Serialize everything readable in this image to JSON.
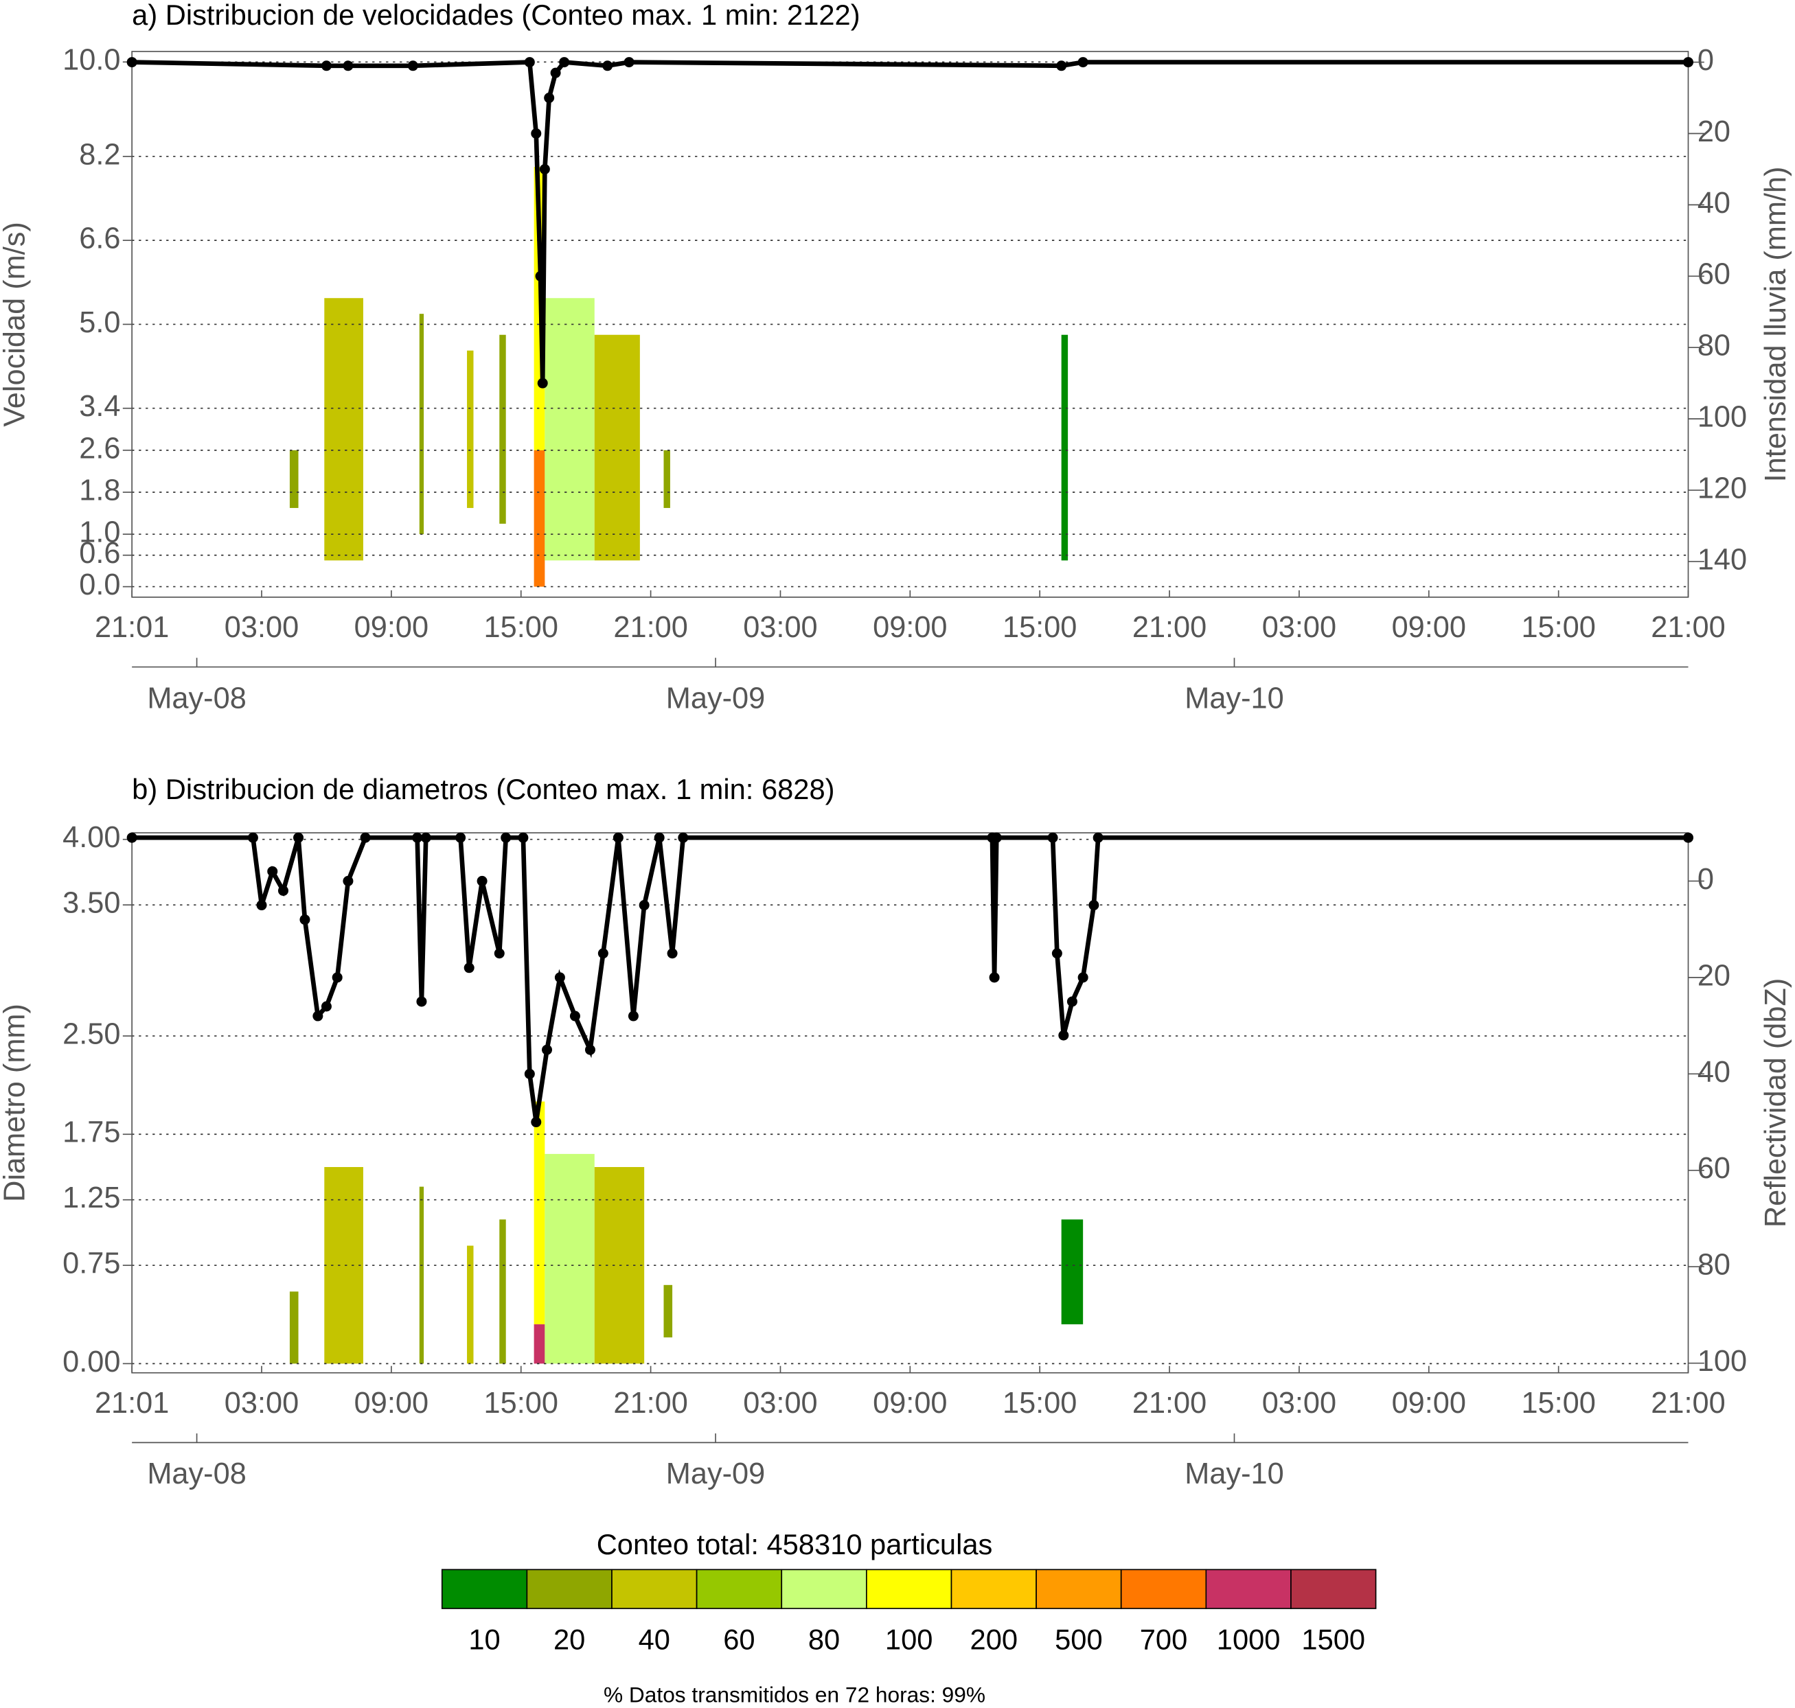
{
  "chart_data": [
    {
      "type": "heatmap",
      "title": "a) Distribucion de velocidades (Conteo max. 1 min: 2122)",
      "ylabel": "Velocidad (m/s)",
      "y2label": "Intensidad lluvia (mm/h)",
      "xlim": [
        0,
        72
      ],
      "xticks": [
        {
          "value": 0,
          "label": "21:01"
        },
        {
          "value": 6,
          "label": "03:00"
        },
        {
          "value": 12,
          "label": "09:00"
        },
        {
          "value": 18,
          "label": "15:00"
        },
        {
          "value": 24,
          "label": "21:00"
        },
        {
          "value": 30,
          "label": "03:00"
        },
        {
          "value": 36,
          "label": "09:00"
        },
        {
          "value": 42,
          "label": "15:00"
        },
        {
          "value": 48,
          "label": "21:00"
        },
        {
          "value": 54,
          "label": "03:00"
        },
        {
          "value": 60,
          "label": "09:00"
        },
        {
          "value": 66,
          "label": "15:00"
        },
        {
          "value": 72,
          "label": "21:00"
        }
      ],
      "date_ticks": [
        {
          "value": 3,
          "label": "May-08"
        },
        {
          "value": 27,
          "label": "May-09"
        },
        {
          "value": 51,
          "label": "May-10"
        }
      ],
      "ylim": [
        -0.2,
        10.2
      ],
      "yticks": [
        {
          "value": 0,
          "label": "0.0"
        },
        0.6,
        {
          "value": 1,
          "label": "1.0"
        },
        1.8,
        2.6,
        3.4,
        {
          "value": 5,
          "label": "5.0"
        },
        6.6,
        8.2,
        {
          "value": 10,
          "label": "10.0"
        }
      ],
      "y2lim": [
        150,
        -3
      ],
      "y2ticks": [
        0,
        20,
        40,
        60,
        80,
        100,
        120,
        140
      ],
      "grid": true,
      "patches": [
        {
          "x": [
            7.3,
            7.7
          ],
          "y": [
            1.5,
            2.6
          ],
          "count": 20
        },
        {
          "x": [
            8.9,
            10.7
          ],
          "y": [
            0.5,
            5.5
          ],
          "count": 40
        },
        {
          "x": [
            13.3,
            13.5
          ],
          "y": [
            1.0,
            5.2
          ],
          "count": 20
        },
        {
          "x": [
            15.5,
            15.8
          ],
          "y": [
            1.5,
            4.5
          ],
          "count": 40
        },
        {
          "x": [
            17.0,
            17.3
          ],
          "y": [
            1.2,
            4.8
          ],
          "count": 20
        },
        {
          "x": [
            18.6,
            19.1
          ],
          "y": [
            2.6,
            8.0
          ],
          "count": 100
        },
        {
          "x": [
            18.6,
            19.1
          ],
          "y": [
            0.0,
            2.6
          ],
          "count": 700
        },
        {
          "x": [
            19.1,
            21.4
          ],
          "y": [
            0.5,
            5.5
          ],
          "count": 80
        },
        {
          "x": [
            21.4,
            23.5
          ],
          "y": [
            0.5,
            4.8
          ],
          "count": 40
        },
        {
          "x": [
            24.6,
            24.9
          ],
          "y": [
            1.5,
            2.6
          ],
          "count": 20
        },
        {
          "x": [
            43.0,
            43.3
          ],
          "y": [
            0.5,
            4.8
          ],
          "count": 10
        }
      ],
      "line": {
        "axis": "y2",
        "color": "#000000",
        "x": [
          0,
          9,
          10,
          13,
          18.4,
          18.7,
          18.9,
          19.0,
          19.1,
          19.3,
          19.6,
          20,
          22,
          23,
          43,
          44,
          72
        ],
        "values": [
          0,
          1,
          1,
          1,
          0,
          20,
          60,
          90,
          30,
          10,
          3,
          0,
          1,
          0,
          1,
          0,
          0
        ]
      }
    },
    {
      "type": "heatmap",
      "title": "b) Distribucion de diametros (Conteo max. 1 min: 6828)",
      "ylabel": "Diametro (mm)",
      "y2label": "Reflectividad (dbZ)",
      "xlim": [
        0,
        72
      ],
      "xticks": [
        {
          "value": 0,
          "label": "21:01"
        },
        {
          "value": 6,
          "label": "03:00"
        },
        {
          "value": 12,
          "label": "09:00"
        },
        {
          "value": 18,
          "label": "15:00"
        },
        {
          "value": 24,
          "label": "21:00"
        },
        {
          "value": 30,
          "label": "03:00"
        },
        {
          "value": 36,
          "label": "09:00"
        },
        {
          "value": 42,
          "label": "15:00"
        },
        {
          "value": 48,
          "label": "21:00"
        },
        {
          "value": 54,
          "label": "03:00"
        },
        {
          "value": 60,
          "label": "09:00"
        },
        {
          "value": 66,
          "label": "15:00"
        },
        {
          "value": 72,
          "label": "21:00"
        }
      ],
      "date_ticks": [
        {
          "value": 3,
          "label": "May-08"
        },
        {
          "value": 27,
          "label": "May-09"
        },
        {
          "value": 51,
          "label": "May-10"
        }
      ],
      "ylim": [
        -0.07,
        4.05
      ],
      "yticks": [
        {
          "value": 0,
          "label": "0.00"
        },
        0.75,
        1.25,
        1.75,
        {
          "value": 2.5,
          "label": "2.50"
        },
        {
          "value": 3.5,
          "label": "3.50"
        },
        {
          "value": 4,
          "label": "4.00"
        }
      ],
      "y2lim": [
        102,
        -10
      ],
      "y2ticks": [
        0,
        20,
        40,
        60,
        80,
        100
      ],
      "grid": true,
      "patches": [
        {
          "x": [
            7.3,
            7.7
          ],
          "y": [
            0,
            0.55
          ],
          "count": 20
        },
        {
          "x": [
            8.9,
            10.7
          ],
          "y": [
            0,
            1.5
          ],
          "count": 40
        },
        {
          "x": [
            13.3,
            13.5
          ],
          "y": [
            0,
            1.35
          ],
          "count": 20
        },
        {
          "x": [
            15.5,
            15.8
          ],
          "y": [
            0,
            0.9
          ],
          "count": 40
        },
        {
          "x": [
            17.0,
            17.3
          ],
          "y": [
            0,
            1.1
          ],
          "count": 20
        },
        {
          "x": [
            18.6,
            19.1
          ],
          "y": [
            0.3,
            2.0
          ],
          "count": 100
        },
        {
          "x": [
            18.6,
            19.1
          ],
          "y": [
            0,
            0.3
          ],
          "count": 1000
        },
        {
          "x": [
            19.1,
            21.4
          ],
          "y": [
            0,
            1.6
          ],
          "count": 80
        },
        {
          "x": [
            21.4,
            23.7
          ],
          "y": [
            0,
            1.5
          ],
          "count": 40
        },
        {
          "x": [
            24.6,
            25.0
          ],
          "y": [
            0.2,
            0.6
          ],
          "count": 20
        },
        {
          "x": [
            43.0,
            44.0
          ],
          "y": [
            0.3,
            1.1
          ],
          "count": 10
        }
      ],
      "line": {
        "axis": "y2",
        "color": "#000000",
        "x": [
          0,
          5.6,
          6,
          6.5,
          7,
          7.7,
          8,
          8.6,
          9,
          9.5,
          10,
          10.8,
          13.2,
          13.4,
          13.6,
          15.2,
          15.6,
          16.2,
          17,
          17.3,
          18.1,
          18.4,
          18.7,
          19.2,
          19.8,
          20.5,
          21.2,
          21.8,
          22.5,
          23.2,
          23.7,
          24.4,
          25,
          25.5,
          39.8,
          39.9,
          40.0,
          42.6,
          42.8,
          43.1,
          43.5,
          44,
          44.5,
          44.7,
          72
        ],
        "values": [
          -9,
          -9,
          5,
          -2,
          2,
          -9,
          8,
          28,
          26,
          20,
          0,
          -9,
          -9,
          25,
          -9,
          -9,
          18,
          0,
          15,
          -9,
          -9,
          40,
          50,
          35,
          20,
          28,
          35,
          15,
          -9,
          28,
          5,
          -9,
          15,
          -9,
          -9,
          20,
          -9,
          -9,
          15,
          32,
          25,
          20,
          5,
          -9,
          -9
        ]
      }
    },
    {
      "type": "colorbar",
      "title": "Conteo total: 458310 particulas",
      "levels": [
        10,
        20,
        40,
        60,
        80,
        100,
        200,
        500,
        700,
        1000,
        1500
      ],
      "colors": [
        "#008c00",
        "#8fa600",
        "#c4c400",
        "#96c800",
        "#c8ff78",
        "#ffff00",
        "#ffc800",
        "#ff9b00",
        "#ff7800",
        "#c83264",
        "#b43246"
      ]
    }
  ],
  "footer": "% Datos transmitidos en 72 horas: 99%"
}
